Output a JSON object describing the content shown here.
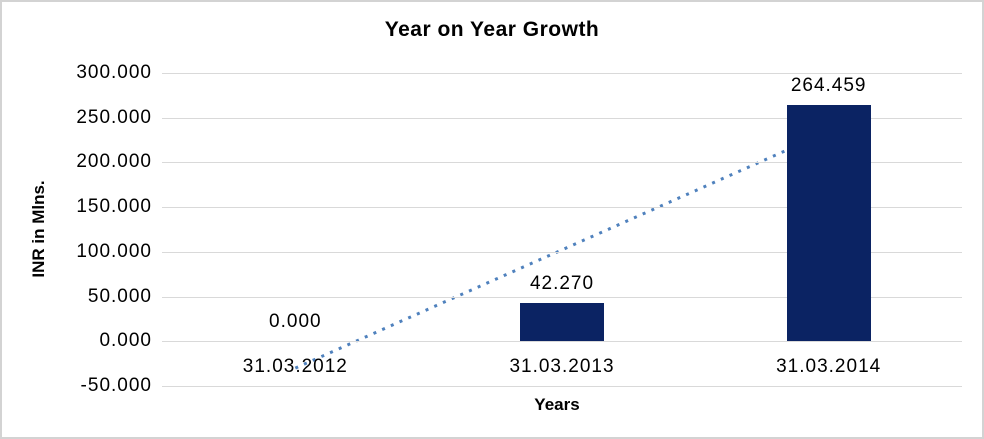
{
  "chart_data": {
    "type": "bar",
    "title": "Year on Year Growth",
    "xlabel": "Years",
    "ylabel": "INR in Mlns.",
    "categories": [
      "31.03.2012",
      "31.03.2013",
      "31.03.2014"
    ],
    "values": [
      0,
      42.27,
      264.459
    ],
    "data_labels": [
      "0.000",
      "42.270",
      "264.459"
    ],
    "ylim": [
      -50,
      300
    ],
    "ytick_step": 50,
    "ytick_labels": [
      "300.000",
      "250.000",
      "200.000",
      "150.000",
      "100.000",
      "50.000",
      "0.000",
      "-50.000"
    ],
    "grid": true,
    "legend": "none",
    "bar_color": "#0b2363",
    "trendline": {
      "type": "linear",
      "style": "dotted",
      "color": "#4f81bd",
      "points": [
        {
          "category_index": 0,
          "value": -30.0
        },
        {
          "category_index": 2,
          "value": 234.5
        }
      ]
    }
  },
  "colors": {
    "background": "#ffffff",
    "border": "#d3d3d3",
    "gridline": "#d9d9d9",
    "text": "#000000"
  }
}
